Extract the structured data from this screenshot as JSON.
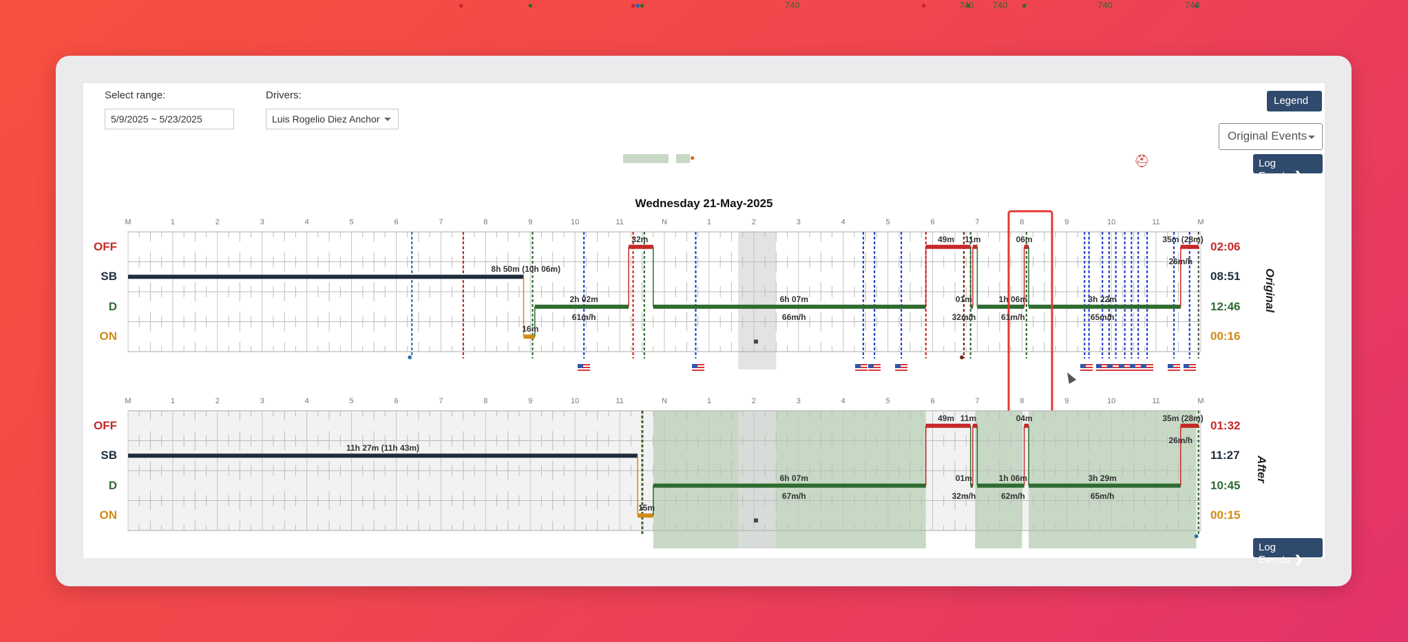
{
  "filters": {
    "range_label": "Select range:",
    "range_value": "5/9/2025 ~ 5/23/2025",
    "drivers_label": "Drivers:",
    "driver_value": "Luis Rogelio Diez Anchor"
  },
  "buttons": {
    "legend": "Legend",
    "events_select": "Original Events",
    "log_events": "Log Events"
  },
  "date_title": "Wednesday 21-May-2025",
  "hours": [
    "M",
    "1",
    "2",
    "3",
    "4",
    "5",
    "6",
    "7",
    "8",
    "9",
    "10",
    "11",
    "N",
    "1",
    "2",
    "3",
    "4",
    "5",
    "6",
    "7",
    "8",
    "9",
    "10",
    "11",
    "M"
  ],
  "rows": [
    "OFF",
    "SB",
    "D",
    "ON"
  ],
  "colors": {
    "off": "#c62828",
    "sb": "#1f2d3d",
    "d": "#2e6b30",
    "on": "#d18a12",
    "highlight": "#e53935",
    "blue_event": "#2244cc",
    "green_shade": "#c7d9c5"
  },
  "original": {
    "side_label": "Original",
    "totals": [
      "02:06",
      "08:51",
      "12:46",
      "00:16"
    ],
    "labels": [
      {
        "t": 8.9,
        "row": "SB",
        "text": "8h 50m (10h 06m)"
      },
      {
        "t": 10.2,
        "row": "D",
        "text": "2h 02m"
      },
      {
        "t": 10.2,
        "row": "D2",
        "text": "61m/h"
      },
      {
        "t": 11.45,
        "row": "OFF",
        "text": "32m"
      },
      {
        "t": 14.9,
        "row": "D",
        "text": "6h 07m"
      },
      {
        "t": 14.9,
        "row": "D2",
        "text": "66m/h"
      },
      {
        "t": 9.0,
        "row": "ON",
        "text": "16m"
      },
      {
        "t": 18.3,
        "row": "OFF",
        "text": "49m"
      },
      {
        "t": 18.9,
        "row": "OFF",
        "text": "11m"
      },
      {
        "t": 18.7,
        "row": "D",
        "text": "01m"
      },
      {
        "t": 18.7,
        "row": "D2",
        "text": "32m/h"
      },
      {
        "t": 19.8,
        "row": "D",
        "text": "1h 06m"
      },
      {
        "t": 19.8,
        "row": "D2",
        "text": "61m/h"
      },
      {
        "t": 20.05,
        "row": "OFF",
        "text": "06m"
      },
      {
        "t": 21.8,
        "row": "D",
        "text": "3h 22m"
      },
      {
        "t": 21.8,
        "row": "D2",
        "text": "65m/h"
      },
      {
        "t": 23.6,
        "row": "OFF",
        "text": "35m (28m)"
      },
      {
        "t": 23.55,
        "row": "OFF2",
        "text": "26m/h"
      }
    ]
  },
  "after": {
    "side_label": "After",
    "totals": [
      "01:32",
      "11:27",
      "10:45",
      "00:15"
    ],
    "labels": [
      {
        "t": 5.7,
        "row": "SB",
        "text": "11h 27m (11h 43m)"
      },
      {
        "t": 11.6,
        "row": "ON",
        "text": "15m"
      },
      {
        "t": 14.9,
        "row": "D",
        "text": "6h 07m"
      },
      {
        "t": 14.9,
        "row": "D2",
        "text": "67m/h"
      },
      {
        "t": 18.3,
        "row": "OFF",
        "text": "49m"
      },
      {
        "t": 18.8,
        "row": "OFF",
        "text": "11m"
      },
      {
        "t": 18.7,
        "row": "D",
        "text": "01m"
      },
      {
        "t": 18.7,
        "row": "D2",
        "text": "32m/h"
      },
      {
        "t": 19.8,
        "row": "D",
        "text": "1h 06m"
      },
      {
        "t": 19.8,
        "row": "D2",
        "text": "62m/h"
      },
      {
        "t": 20.05,
        "row": "OFF",
        "text": "04m"
      },
      {
        "t": 21.8,
        "row": "D",
        "text": "3h 29m"
      },
      {
        "t": 21.8,
        "row": "D2",
        "text": "65m/h"
      },
      {
        "t": 23.6,
        "row": "OFF",
        "text": "35m (28m)"
      },
      {
        "t": 23.55,
        "row": "OFF2",
        "text": "26m/h"
      }
    ]
  }
}
